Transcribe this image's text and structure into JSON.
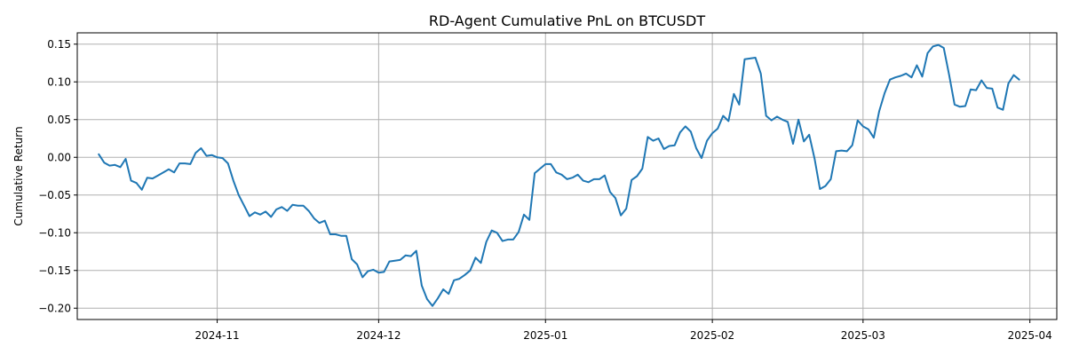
{
  "chart_data": {
    "type": "line",
    "title": "RD-Agent Cumulative PnL on BTCUSDT",
    "xlabel": "",
    "ylabel": "Cumulative Return",
    "grid": true,
    "xlim": [
      "2024-10-06",
      "2025-04-06"
    ],
    "ylim": [
      -0.215,
      0.165
    ],
    "x_ticks": [
      {
        "value": "2024-11-01",
        "label": "2024-11"
      },
      {
        "value": "2024-12-01",
        "label": "2024-12"
      },
      {
        "value": "2025-01-01",
        "label": "2025-01"
      },
      {
        "value": "2025-02-01",
        "label": "2025-02"
      },
      {
        "value": "2025-03-01",
        "label": "2025-03"
      },
      {
        "value": "2025-04-01",
        "label": "2025-04"
      }
    ],
    "y_ticks": [
      {
        "value": 0.15,
        "label": "0.15"
      },
      {
        "value": 0.1,
        "label": "0.10"
      },
      {
        "value": 0.05,
        "label": "0.05"
      },
      {
        "value": 0.0,
        "label": "0.00"
      },
      {
        "value": -0.05,
        "label": "−0.05"
      },
      {
        "value": -0.1,
        "label": "−0.10"
      },
      {
        "value": -0.15,
        "label": "−0.15"
      },
      {
        "value": -0.2,
        "label": "−0.20"
      }
    ],
    "series": [
      {
        "color": "#1f77b4",
        "x": [
          "2024-10-10",
          "2024-10-11",
          "2024-10-12",
          "2024-10-13",
          "2024-10-14",
          "2024-10-15",
          "2024-10-16",
          "2024-10-17",
          "2024-10-18",
          "2024-10-19",
          "2024-10-20",
          "2024-10-21",
          "2024-10-22",
          "2024-10-23",
          "2024-10-24",
          "2024-10-25",
          "2024-10-26",
          "2024-10-27",
          "2024-10-28",
          "2024-10-29",
          "2024-10-30",
          "2024-10-31",
          "2024-11-01",
          "2024-11-02",
          "2024-11-03",
          "2024-11-04",
          "2024-11-05",
          "2024-11-06",
          "2024-11-07",
          "2024-11-08",
          "2024-11-09",
          "2024-11-10",
          "2024-11-11",
          "2024-11-12",
          "2024-11-13",
          "2024-11-14",
          "2024-11-15",
          "2024-11-16",
          "2024-11-17",
          "2024-11-18",
          "2024-11-19",
          "2024-11-20",
          "2024-11-21",
          "2024-11-22",
          "2024-11-23",
          "2024-11-24",
          "2024-11-25",
          "2024-11-26",
          "2024-11-27",
          "2024-11-28",
          "2024-11-29",
          "2024-11-30",
          "2024-12-01",
          "2024-12-02",
          "2024-12-03",
          "2024-12-04",
          "2024-12-05",
          "2024-12-06",
          "2024-12-07",
          "2024-12-08",
          "2024-12-09",
          "2024-12-10",
          "2024-12-11",
          "2024-12-12",
          "2024-12-13",
          "2024-12-14",
          "2024-12-15",
          "2024-12-16",
          "2024-12-17",
          "2024-12-18",
          "2024-12-19",
          "2024-12-20",
          "2024-12-21",
          "2024-12-22",
          "2024-12-23",
          "2024-12-24",
          "2024-12-25",
          "2024-12-26",
          "2024-12-27",
          "2024-12-28",
          "2024-12-29",
          "2024-12-30",
          "2024-12-31",
          "2025-01-01",
          "2025-01-02",
          "2025-01-03",
          "2025-01-04",
          "2025-01-05",
          "2025-01-06",
          "2025-01-07",
          "2025-01-08",
          "2025-01-09",
          "2025-01-10",
          "2025-01-11",
          "2025-01-12",
          "2025-01-13",
          "2025-01-14",
          "2025-01-15",
          "2025-01-16",
          "2025-01-17",
          "2025-01-18",
          "2025-01-19",
          "2025-01-20",
          "2025-01-21",
          "2025-01-22",
          "2025-01-23",
          "2025-01-24",
          "2025-01-25",
          "2025-01-26",
          "2025-01-27",
          "2025-01-28",
          "2025-01-29",
          "2025-01-30",
          "2025-01-31",
          "2025-02-01",
          "2025-02-02",
          "2025-02-03",
          "2025-02-04",
          "2025-02-05",
          "2025-02-06",
          "2025-02-07",
          "2025-02-08",
          "2025-02-09",
          "2025-02-10",
          "2025-02-11",
          "2025-02-12",
          "2025-02-13",
          "2025-02-14",
          "2025-02-15",
          "2025-02-16",
          "2025-02-17",
          "2025-02-18",
          "2025-02-19",
          "2025-02-20",
          "2025-02-21",
          "2025-02-22",
          "2025-02-23",
          "2025-02-24",
          "2025-02-25",
          "2025-02-26",
          "2025-02-27",
          "2025-02-28",
          "2025-03-01",
          "2025-03-02",
          "2025-03-03",
          "2025-03-04",
          "2025-03-05",
          "2025-03-06",
          "2025-03-07",
          "2025-03-08",
          "2025-03-09",
          "2025-03-10",
          "2025-03-11",
          "2025-03-12",
          "2025-03-13",
          "2025-03-14",
          "2025-03-15",
          "2025-03-16",
          "2025-03-17",
          "2025-03-18",
          "2025-03-19",
          "2025-03-20",
          "2025-03-21",
          "2025-03-22",
          "2025-03-23",
          "2025-03-24",
          "2025-03-25",
          "2025-03-26",
          "2025-03-27",
          "2025-03-28",
          "2025-03-29",
          "2025-03-30"
        ],
        "values": [
          0.004,
          -0.007,
          -0.011,
          -0.01,
          -0.013,
          -0.002,
          -0.031,
          -0.034,
          -0.043,
          -0.027,
          -0.028,
          -0.024,
          -0.02,
          -0.016,
          -0.02,
          -0.008,
          -0.008,
          -0.009,
          0.006,
          0.012,
          0.002,
          0.003,
          0.0,
          -0.001,
          -0.008,
          -0.031,
          -0.05,
          -0.064,
          -0.078,
          -0.073,
          -0.076,
          -0.072,
          -0.079,
          -0.069,
          -0.066,
          -0.071,
          -0.063,
          -0.064,
          -0.064,
          -0.071,
          -0.081,
          -0.087,
          -0.084,
          -0.102,
          -0.102,
          -0.104,
          -0.104,
          -0.135,
          -0.142,
          -0.159,
          -0.151,
          -0.149,
          -0.153,
          -0.152,
          -0.138,
          -0.137,
          -0.136,
          -0.13,
          -0.131,
          -0.124,
          -0.17,
          -0.188,
          -0.197,
          -0.187,
          -0.175,
          -0.181,
          -0.163,
          -0.161,
          -0.156,
          -0.15,
          -0.133,
          -0.14,
          -0.112,
          -0.097,
          -0.1,
          -0.111,
          -0.109,
          -0.109,
          -0.099,
          -0.076,
          -0.083,
          -0.021,
          -0.015,
          -0.009,
          -0.009,
          -0.02,
          -0.023,
          -0.029,
          -0.027,
          -0.023,
          -0.031,
          -0.033,
          -0.029,
          -0.029,
          -0.024,
          -0.046,
          -0.054,
          -0.077,
          -0.068,
          -0.03,
          -0.025,
          -0.015,
          0.027,
          0.022,
          0.025,
          0.011,
          0.015,
          0.016,
          0.033,
          0.041,
          0.034,
          0.012,
          -0.001,
          0.022,
          0.032,
          0.038,
          0.055,
          0.048,
          0.084,
          0.07,
          0.13,
          0.131,
          0.132,
          0.111,
          0.055,
          0.049,
          0.054,
          0.05,
          0.047,
          0.018,
          0.05,
          0.021,
          0.03,
          -0.002,
          -0.042,
          -0.038,
          -0.029,
          0.008,
          0.009,
          0.008,
          0.016,
          0.049,
          0.041,
          0.037,
          0.026,
          0.061,
          0.085,
          0.103,
          0.106,
          0.108,
          0.111,
          0.106,
          0.122,
          0.107,
          0.138,
          0.147,
          0.149,
          0.145,
          0.109,
          0.07,
          0.067,
          0.068,
          0.09,
          0.089,
          0.102,
          0.092,
          0.091,
          0.066,
          0.063,
          0.098,
          0.109,
          0.103
        ]
      }
    ]
  }
}
